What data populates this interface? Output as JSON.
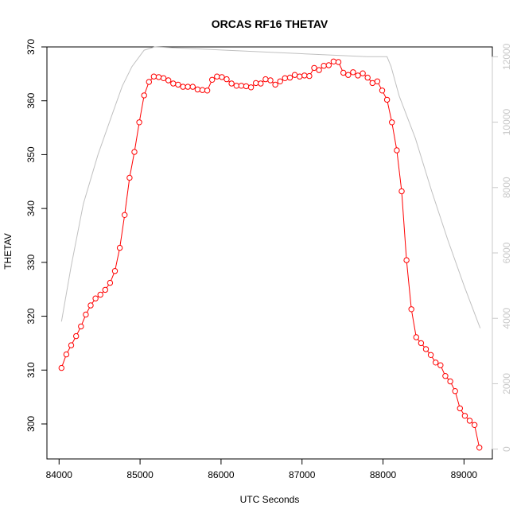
{
  "chart_data": {
    "type": "line",
    "title": "ORCAS RF16 THETAV",
    "xlabel": "UTC Seconds",
    "ylabel": "THETAV",
    "xlim": [
      83850,
      89350
    ],
    "ylim": [
      293.5,
      370
    ],
    "y2lim": [
      -300,
      12300
    ],
    "x_ticks": [
      84000,
      85000,
      86000,
      87000,
      88000,
      89000
    ],
    "y_ticks": [
      300,
      310,
      320,
      330,
      340,
      350,
      360,
      370
    ],
    "y2_ticks": [
      0,
      2000,
      4000,
      6000,
      8000,
      10000,
      12000
    ],
    "grid": false,
    "legend": "none",
    "colors": {
      "series": "#ff0000",
      "secondary": "#c0c0c0",
      "axis": "#000000",
      "right_axis": "#c8c8c8"
    },
    "series": [
      {
        "values_x": [
          84030,
          84090,
          84150,
          84210,
          84270,
          84330,
          84390,
          84450,
          84510,
          84570,
          84630,
          84690,
          84750,
          84810,
          84870,
          84930,
          84990,
          85050,
          85110,
          85170,
          85230,
          85290,
          85350,
          85410,
          85470,
          85530,
          85590,
          85650,
          85710,
          85770,
          85830,
          85890,
          85950,
          86010,
          86070,
          86130,
          86190,
          86250,
          86310,
          86370,
          86430,
          86490,
          86550,
          86610,
          86670,
          86730,
          86790,
          86850,
          86910,
          86970,
          87030,
          87090,
          87150,
          87210,
          87270,
          87330,
          87390,
          87450,
          87510,
          87570,
          87630,
          87690,
          87750,
          87810,
          87870,
          87930,
          87990,
          88050,
          88110,
          88170,
          88230,
          88290,
          88350,
          88410,
          88470,
          88530,
          88590,
          88650,
          88710,
          88770,
          88830,
          88890,
          88950,
          89010,
          89070,
          89130,
          89190
        ],
        "values_y": [
          310.4,
          312.9,
          314.6,
          316.3,
          318.1,
          320.3,
          322.0,
          323.3,
          324.0,
          324.9,
          326.2,
          328.4,
          332.7,
          338.8,
          345.7,
          350.5,
          356.0,
          361.0,
          363.5,
          364.5,
          364.4,
          364.2,
          363.8,
          363.2,
          363.0,
          362.6,
          362.6,
          362.6,
          362.1,
          362.0,
          361.9,
          363.9,
          364.5,
          364.4,
          364.0,
          363.2,
          362.8,
          362.8,
          362.7,
          362.5,
          363.3,
          363.2,
          364.0,
          363.8,
          363.0,
          363.6,
          364.2,
          364.3,
          364.8,
          364.5,
          364.7,
          364.6,
          366.1,
          365.7,
          366.5,
          366.6,
          367.3,
          367.2,
          365.2,
          364.8,
          365.3,
          364.7,
          365.1,
          364.3,
          363.3,
          363.6,
          361.9,
          360.2,
          356.0,
          350.8,
          343.2,
          330.4,
          321.3,
          316.1,
          315.0,
          313.9,
          312.8,
          311.4,
          310.9,
          308.9,
          307.9,
          306.1,
          302.9,
          301.5,
          300.6,
          299.8,
          295.6
        ]
      },
      {
        "values_x": [
          84030,
          84150,
          84300,
          84480,
          84650,
          84780,
          84900,
          85050,
          85180,
          87800,
          88050,
          88100,
          88200,
          88400,
          88600,
          88800,
          89000,
          89200
        ],
        "values_y2": [
          3900,
          5600,
          7500,
          9000,
          10200,
          11100,
          11700,
          12200,
          12300,
          12000,
          12000,
          11700,
          10800,
          9500,
          7900,
          6400,
          5000,
          3700
        ]
      }
    ]
  }
}
